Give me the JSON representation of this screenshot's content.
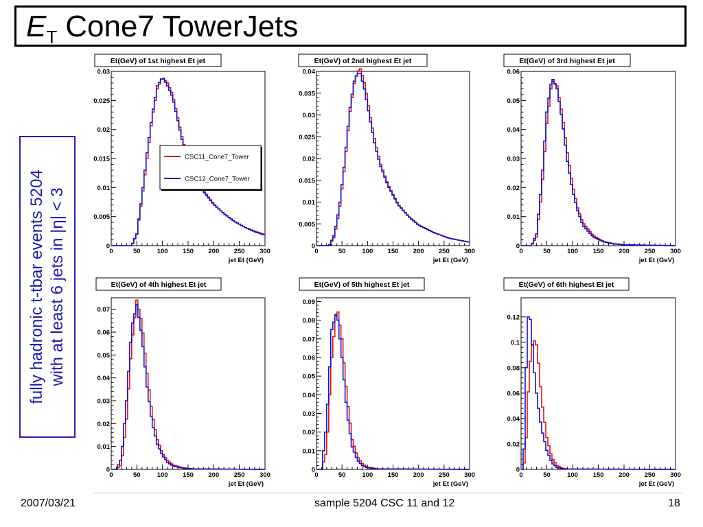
{
  "slide": {
    "title_symbol": "E",
    "title_subscript": "T",
    "title_rest": "Cone7 TowerJets",
    "side_line1": "fully hadronic t-tbar events 5204",
    "side_line2": "with at least 6 jets in |η| < 3",
    "footer_date": "2007/03/21",
    "footer_center": "sample 5204 CSC 11 and 12",
    "footer_page": "18"
  },
  "colors": {
    "csc11": "#e01010",
    "csc12": "#1010d0",
    "side_text": "#1a1ab0"
  },
  "chart_data": [
    {
      "type": "line",
      "title": "Et(GeV) of 1st highest Et jet",
      "xlabel": "jet Et (GeV)",
      "xlim": [
        0,
        300
      ],
      "ylim": [
        0,
        0.03
      ],
      "x_ticks": [
        0,
        50,
        100,
        150,
        200,
        250,
        300
      ],
      "y_ticks": [
        "0",
        "0.005",
        "0.01",
        "0.015",
        "0.02",
        "0.025",
        "0.03"
      ],
      "legend": {
        "placement": "center-right",
        "entries": [
          "CSC11_Cone7_Tower",
          "CSC12_Cone7_Tower"
        ]
      },
      "series": [
        {
          "name": "CSC11_Cone7_Tower",
          "x": [
            0,
            40,
            50,
            60,
            70,
            80,
            90,
            100,
            110,
            120,
            130,
            140,
            150,
            160,
            180,
            200,
            220,
            240,
            260,
            280,
            300
          ],
          "y": [
            0,
            0,
            0.002,
            0.008,
            0.015,
            0.022,
            0.027,
            0.029,
            0.028,
            0.026,
            0.022,
            0.018,
            0.015,
            0.0125,
            0.0095,
            0.0072,
            0.0055,
            0.0042,
            0.0032,
            0.0025,
            0.0019
          ]
        },
        {
          "name": "CSC12_Cone7_Tower",
          "x": [
            0,
            40,
            50,
            60,
            70,
            80,
            90,
            100,
            110,
            120,
            130,
            140,
            150,
            160,
            180,
            200,
            220,
            240,
            260,
            280,
            300
          ],
          "y": [
            0,
            0,
            0.002,
            0.0085,
            0.016,
            0.0225,
            0.0275,
            0.029,
            0.0275,
            0.0255,
            0.0215,
            0.0175,
            0.0148,
            0.0123,
            0.0093,
            0.0071,
            0.0055,
            0.0042,
            0.0032,
            0.0024,
            0.0018
          ]
        }
      ]
    },
    {
      "type": "line",
      "title": "Et(GeV) of 2nd highest Et jet",
      "xlabel": "jet Et (GeV)",
      "xlim": [
        0,
        300
      ],
      "ylim": [
        0,
        0.04
      ],
      "x_ticks": [
        0,
        50,
        100,
        150,
        200,
        250,
        300
      ],
      "y_ticks": [
        "0",
        "0.005",
        "0.01",
        "0.015",
        "0.02",
        "0.025",
        "0.03",
        "0.035",
        "0.04"
      ],
      "series": [
        {
          "name": "CSC11_Cone7_Tower",
          "x": [
            0,
            25,
            35,
            45,
            55,
            65,
            75,
            85,
            95,
            105,
            115,
            125,
            140,
            160,
            180,
            200,
            230,
            260,
            300
          ],
          "y": [
            0,
            0,
            0.002,
            0.008,
            0.018,
            0.03,
            0.038,
            0.041,
            0.037,
            0.03,
            0.024,
            0.019,
            0.014,
            0.0095,
            0.0068,
            0.0048,
            0.003,
            0.0017,
            0.0008
          ]
        },
        {
          "name": "CSC12_Cone7_Tower",
          "x": [
            0,
            25,
            35,
            45,
            55,
            65,
            75,
            85,
            95,
            105,
            115,
            125,
            140,
            160,
            180,
            200,
            230,
            260,
            300
          ],
          "y": [
            0,
            0,
            0.0025,
            0.009,
            0.019,
            0.031,
            0.0385,
            0.04,
            0.0355,
            0.029,
            0.023,
            0.0185,
            0.0138,
            0.0094,
            0.0067,
            0.0047,
            0.003,
            0.0017,
            0.0008
          ]
        }
      ]
    },
    {
      "type": "line",
      "title": "Et(GeV) of 3rd highest Et jet",
      "xlabel": "jet Et (GeV)",
      "xlim": [
        0,
        300
      ],
      "ylim": [
        0,
        0.06
      ],
      "x_ticks": [
        0,
        50,
        100,
        150,
        200,
        250,
        300
      ],
      "y_ticks": [
        "0",
        "0.01",
        "0.02",
        "0.03",
        "0.04",
        "0.05",
        "0.06"
      ],
      "series": [
        {
          "name": "CSC11_Cone7_Tower",
          "x": [
            0,
            20,
            30,
            40,
            50,
            60,
            70,
            80,
            90,
            100,
            110,
            120,
            140,
            160,
            180,
            200,
            300
          ],
          "y": [
            0,
            0,
            0.003,
            0.018,
            0.042,
            0.057,
            0.055,
            0.045,
            0.032,
            0.021,
            0.013,
            0.008,
            0.0035,
            0.0015,
            0.0007,
            0.0003,
            0
          ]
        },
        {
          "name": "CSC12_Cone7_Tower",
          "x": [
            0,
            20,
            30,
            40,
            50,
            60,
            70,
            80,
            90,
            100,
            110,
            120,
            140,
            160,
            180,
            200,
            300
          ],
          "y": [
            0,
            0,
            0.004,
            0.021,
            0.046,
            0.058,
            0.054,
            0.043,
            0.029,
            0.019,
            0.012,
            0.007,
            0.003,
            0.0013,
            0.0006,
            0.0003,
            0
          ]
        }
      ]
    },
    {
      "type": "line",
      "title": "Et(GeV) of 4th highest Et jet",
      "xlabel": "jet Et (GeV)",
      "xlim": [
        0,
        300
      ],
      "ylim": [
        0,
        0.075
      ],
      "x_ticks": [
        0,
        50,
        100,
        150,
        200,
        250,
        300
      ],
      "y_ticks": [
        "0",
        "0.01",
        "0.02",
        "0.03",
        "0.04",
        "0.05",
        "0.06",
        "0.07"
      ],
      "series": [
        {
          "name": "CSC11_Cone7_Tower",
          "x": [
            0,
            10,
            20,
            30,
            40,
            50,
            60,
            70,
            80,
            90,
            100,
            110,
            120,
            140,
            160,
            300
          ],
          "y": [
            0,
            0,
            0.002,
            0.022,
            0.055,
            0.074,
            0.064,
            0.042,
            0.024,
            0.013,
            0.007,
            0.004,
            0.002,
            0.0007,
            0.0002,
            0
          ]
        },
        {
          "name": "CSC12_Cone7_Tower",
          "x": [
            0,
            10,
            20,
            30,
            40,
            50,
            60,
            70,
            80,
            90,
            100,
            110,
            120,
            140,
            160,
            300
          ],
          "y": [
            0,
            0,
            0.005,
            0.03,
            0.062,
            0.072,
            0.058,
            0.036,
            0.02,
            0.011,
            0.006,
            0.003,
            0.0015,
            0.0005,
            0.0002,
            0
          ]
        }
      ]
    },
    {
      "type": "line",
      "title": "Et(GeV) of 5th highest Et jet",
      "xlabel": "jet Et (GeV)",
      "xlim": [
        0,
        300
      ],
      "ylim": [
        0,
        0.092
      ],
      "x_ticks": [
        0,
        50,
        100,
        150,
        200,
        250,
        300
      ],
      "y_ticks": [
        "0",
        "0.01",
        "0.02",
        "0.03",
        "0.04",
        "0.05",
        "0.06",
        "0.07",
        "0.08",
        "0.09"
      ],
      "series": [
        {
          "name": "CSC11_Cone7_Tower",
          "x": [
            0,
            10,
            20,
            30,
            40,
            50,
            60,
            70,
            80,
            90,
            100,
            120,
            300
          ],
          "y": [
            0,
            0,
            0.01,
            0.06,
            0.088,
            0.07,
            0.038,
            0.016,
            0.007,
            0.003,
            0.0012,
            0.0003,
            0
          ]
        },
        {
          "name": "CSC12_Cone7_Tower",
          "x": [
            0,
            10,
            20,
            30,
            40,
            50,
            60,
            70,
            80,
            90,
            100,
            120,
            300
          ],
          "y": [
            0,
            0,
            0.025,
            0.075,
            0.085,
            0.06,
            0.03,
            0.012,
            0.005,
            0.002,
            0.0008,
            0.0002,
            0
          ]
        }
      ]
    },
    {
      "type": "line",
      "title": "Et(GeV) of 6th highest Et jet",
      "xlabel": "jet Et (GeV)",
      "xlim": [
        0,
        300
      ],
      "ylim": [
        0,
        0.135
      ],
      "x_ticks": [
        0,
        50,
        100,
        150,
        200,
        250,
        300
      ],
      "y_ticks": [
        "0",
        "0.02",
        "0.04",
        "0.06",
        "0.08",
        "0.1",
        "0.12"
      ],
      "series": [
        {
          "name": "CSC11_Cone7_Tower",
          "x": [
            0,
            5,
            10,
            15,
            20,
            25,
            30,
            35,
            40,
            50,
            60,
            70,
            80,
            90,
            300
          ],
          "y": [
            0,
            0,
            0.025,
            0.07,
            0.095,
            0.102,
            0.098,
            0.08,
            0.055,
            0.025,
            0.009,
            0.003,
            0.001,
            0.0003,
            0
          ]
        },
        {
          "name": "CSC12_Cone7_Tower",
          "x": [
            0,
            5,
            10,
            15,
            20,
            25,
            30,
            35,
            40,
            50,
            60,
            70,
            80,
            90,
            300
          ],
          "y": [
            0,
            0,
            0.08,
            0.13,
            0.11,
            0.08,
            0.06,
            0.045,
            0.032,
            0.015,
            0.005,
            0.0015,
            0.0005,
            0.0002,
            0
          ]
        }
      ]
    }
  ]
}
